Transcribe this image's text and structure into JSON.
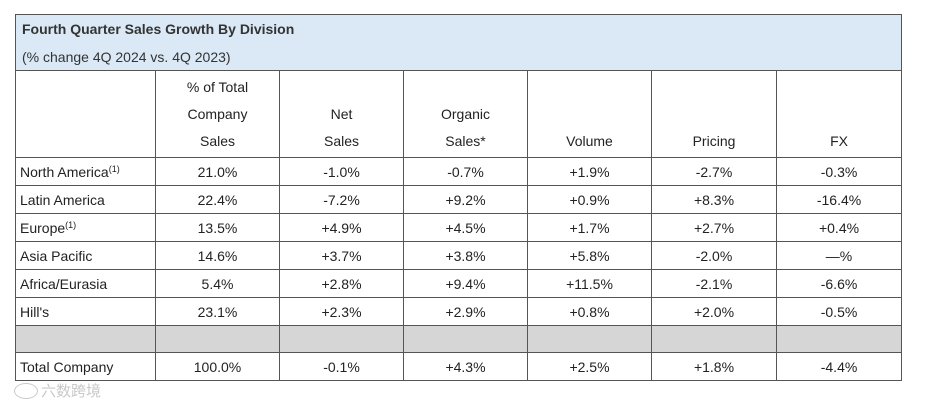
{
  "title": "Fourth Quarter Sales Growth By Division",
  "subtitle": "(% change 4Q 2024 vs. 4Q 2023)",
  "headers": {
    "col1": [
      "% of Total",
      "Company",
      "Sales"
    ],
    "col2": [
      "Net",
      "Sales"
    ],
    "col3": [
      "Organic",
      "Sales*"
    ],
    "col4": [
      "Volume"
    ],
    "col5": [
      "Pricing"
    ],
    "col6": [
      "FX"
    ]
  },
  "rows": [
    {
      "label": "North America",
      "sup": "(1)",
      "values": [
        "21.0%",
        "-1.0%",
        "-0.7%",
        "+1.9%",
        "-2.7%",
        "-0.3%"
      ]
    },
    {
      "label": "Latin America",
      "sup": "",
      "values": [
        "22.4%",
        "-7.2%",
        "+9.2%",
        "+0.9%",
        "+8.3%",
        "-16.4%"
      ]
    },
    {
      "label": "Europe",
      "sup": "(1)",
      "values": [
        "13.5%",
        "+4.9%",
        "+4.5%",
        "+1.7%",
        "+2.7%",
        "+0.4%"
      ]
    },
    {
      "label": "Asia Pacific",
      "sup": "",
      "values": [
        "14.6%",
        "+3.7%",
        "+3.8%",
        "+5.8%",
        "-2.0%",
        "—%"
      ]
    },
    {
      "label": "Africa/Eurasia",
      "sup": "",
      "values": [
        "5.4%",
        "+2.8%",
        "+9.4%",
        "+11.5%",
        "-2.1%",
        "-6.6%"
      ]
    },
    {
      "label": "Hill's",
      "sup": "",
      "values": [
        "23.1%",
        "+2.3%",
        "+2.9%",
        "+0.8%",
        "+2.0%",
        "-0.5%"
      ]
    }
  ],
  "total": {
    "label": "Total Company",
    "values": [
      "100.0%",
      "-0.1%",
      "+4.3%",
      "+2.5%",
      "+1.8%",
      "-4.4%"
    ]
  },
  "watermark": "六数跨境"
}
